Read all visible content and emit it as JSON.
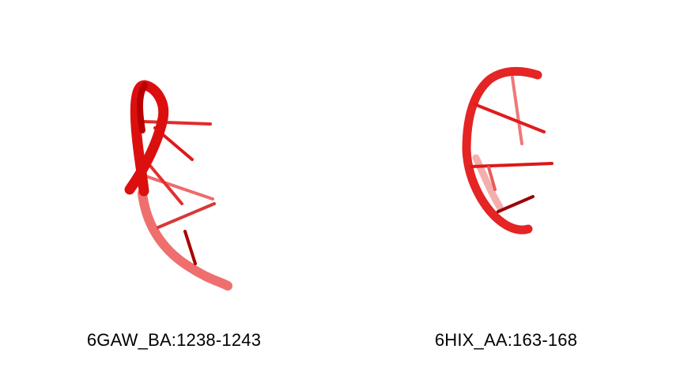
{
  "colors": {
    "background": "#ffffff",
    "backbone_near": "#e21414",
    "backbone_far": "#ee4a4a",
    "base_light": "#f05a5a",
    "base_dark": "#a80000"
  },
  "panels": [
    {
      "caption": "6GAW_BA:1238-1243",
      "representation": "rna-cartoon-backbone-with-bases"
    },
    {
      "caption": "6HIX_AA:163-168",
      "representation": "rna-cartoon-backbone-with-bases"
    }
  ]
}
